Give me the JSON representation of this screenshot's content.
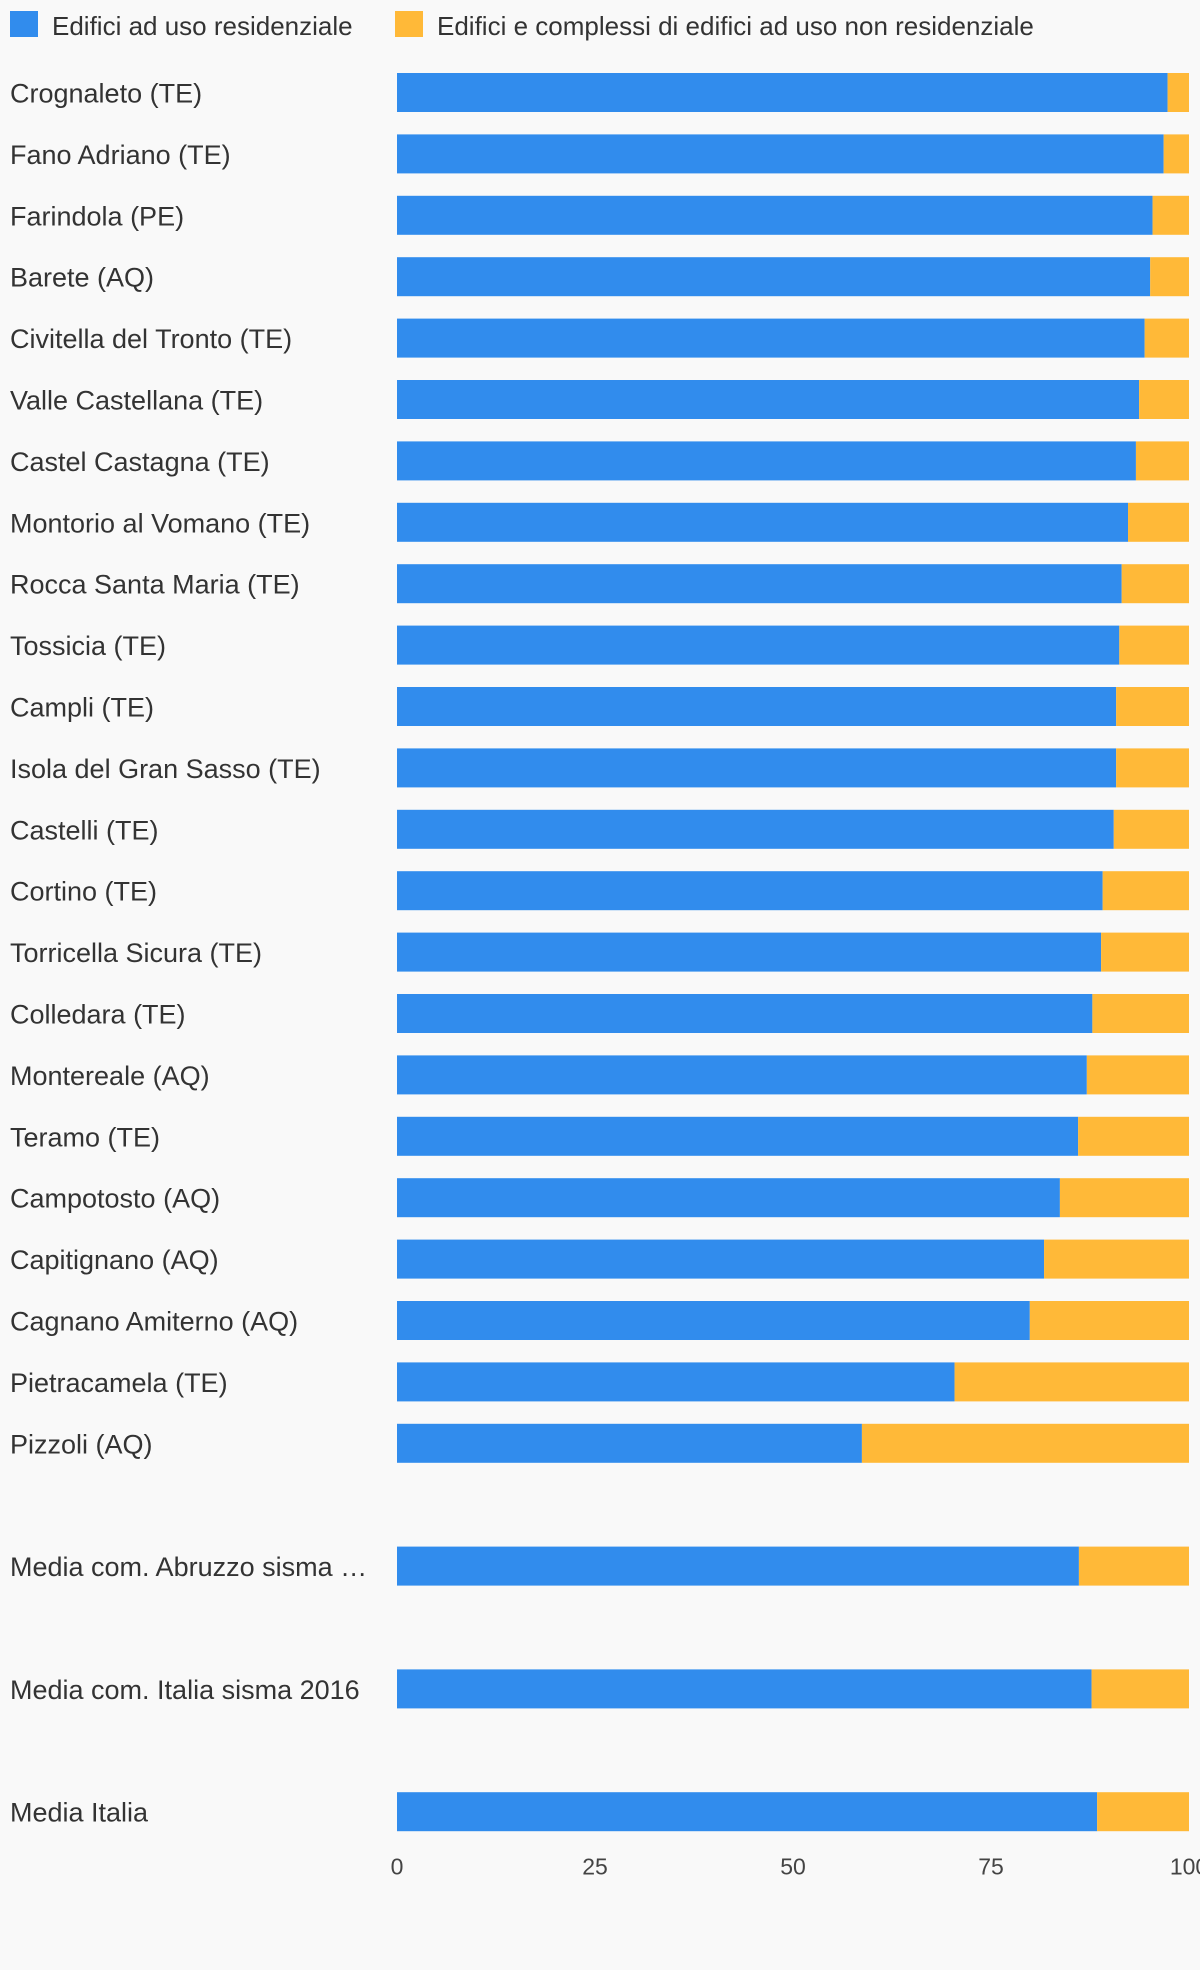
{
  "chart_data": {
    "type": "bar",
    "orientation": "horizontal",
    "stacked": true,
    "legend_position": "top-left",
    "grid": false,
    "xlim": [
      0,
      100
    ],
    "x_ticks": [
      "0",
      "25",
      "50",
      "75",
      "100"
    ],
    "categories": [
      "Crognaleto (TE)",
      "Fano Adriano (TE)",
      "Farindola (PE)",
      "Barete (AQ)",
      "Civitella del Tronto (TE)",
      "Valle Castellana (TE)",
      "Castel Castagna (TE)",
      "Montorio al Vomano (TE)",
      "Rocca Santa Maria (TE)",
      "Tossicia (TE)",
      "Campli (TE)",
      "Isola del Gran Sasso (TE)",
      "Castelli (TE)",
      "Cortino (TE)",
      "Torricella Sicura (TE)",
      "Colledara (TE)",
      "Montereale (AQ)",
      "Teramo (TE)",
      "Campotosto (AQ)",
      "Capitignano (AQ)",
      "Cagnano Amiterno (AQ)",
      "Pietracamela (TE)",
      "Pizzoli (AQ)",
      "Media com. Abruzzo sisma …",
      "Media com. Italia sisma 2016",
      "Media Italia"
    ],
    "group_breaks_before": [
      23,
      24,
      25
    ],
    "series": [
      {
        "name": "Edifici ad uso residenziale",
        "color": "#318ced",
        "values": [
          97.3,
          96.8,
          95.4,
          95.1,
          94.4,
          93.7,
          93.3,
          92.3,
          91.5,
          91.2,
          90.8,
          90.8,
          90.5,
          89.1,
          88.9,
          87.8,
          87.1,
          86.0,
          83.7,
          81.7,
          79.9,
          70.4,
          58.7,
          86.1,
          87.7,
          88.4
        ]
      },
      {
        "name": "Edifici e complessi di edifici ad uso non residenziale",
        "color": "#ffb938",
        "values": [
          2.7,
          3.2,
          4.6,
          4.9,
          5.6,
          6.3,
          6.7,
          7.7,
          8.5,
          8.8,
          9.2,
          9.2,
          9.5,
          10.9,
          11.1,
          12.2,
          12.9,
          14.0,
          16.3,
          18.3,
          20.1,
          29.6,
          41.3,
          13.9,
          12.3,
          11.6
        ]
      }
    ]
  }
}
